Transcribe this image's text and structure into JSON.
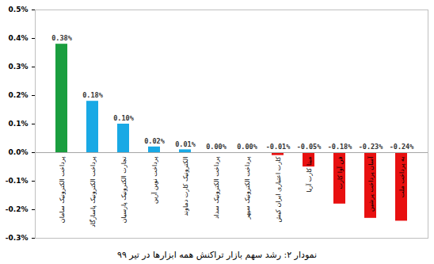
{
  "chart_data": {
    "type": "bar",
    "title": "نمودار ۲: رشد سهم بازار تراکنش همه ابزارها در تیر ۹۹",
    "categories": [
      "پرداخت الکترونیک سامان",
      "پرداخت الکترونیک پاسارگاد",
      "تجارت الکترونیک پارسیان",
      "پرداخت نوین آرین",
      "الکترونیک کارت دماوند",
      "پرداخت الکترونیک سداد",
      "پرداخت الکترونیک سپهر",
      "کارت اعتباری ایران کیش",
      "مبنا کارت آریا",
      "فن آوا کارت",
      "آسان پرداخت پرشین",
      "به پرداخت ملت"
    ],
    "values": [
      0.38,
      0.18,
      0.1,
      0.02,
      0.01,
      0.0,
      0.0,
      -0.01,
      -0.05,
      -0.18,
      -0.23,
      -0.24
    ],
    "value_labels": [
      "0.38%",
      "0.18%",
      "0.10%",
      "0.02%",
      "0.01%",
      "0.00%",
      "0.00%",
      "-0.01%",
      "-0.05%",
      "-0.18%",
      "-0.23%",
      "-0.24%"
    ],
    "colors": [
      "#1a9e3f",
      "#19a9e5",
      "#19a9e5",
      "#19a9e5",
      "#19a9e5",
      "#19a9e5",
      "#19a9e5",
      "#e81010",
      "#e81010",
      "#e81010",
      "#e81010",
      "#e81010"
    ],
    "ylim": [
      -0.3,
      0.5
    ],
    "yticks": [
      {
        "value": -0.3,
        "label": "-0.3%"
      },
      {
        "value": -0.2,
        "label": "-0.2%"
      },
      {
        "value": -0.1,
        "label": "-0.1%"
      },
      {
        "value": 0,
        "label": "0.0%"
      },
      {
        "value": 0.1,
        "label": "0.1%"
      },
      {
        "value": 0.2,
        "label": "0.2%"
      },
      {
        "value": 0.3,
        "label": "0.3%"
      },
      {
        "value": 0.4,
        "label": "0.4%"
      },
      {
        "value": 0.5,
        "label": "0.5%"
      }
    ],
    "grid": false,
    "data_labels": true
  }
}
